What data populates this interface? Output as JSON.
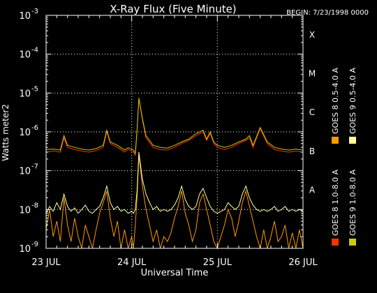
{
  "chart_data": {
    "type": "line",
    "title": "X-Ray Flux (Five Minute)",
    "begin_label": "BEGIN: 7/23/1998 0000",
    "xlabel": "Universal Time",
    "ylabel": "Watts meter2",
    "y_scale": "log",
    "ylim": [
      1e-09,
      0.001
    ],
    "xlim": [
      0,
      72
    ],
    "x_unit": "hours since 23 JUL 1998 0000 UT",
    "grid": true,
    "y_ticks": [
      {
        "value": 1e-09,
        "base": "10",
        "exp": "-9"
      },
      {
        "value": 1e-08,
        "base": "10",
        "exp": "-8"
      },
      {
        "value": 1e-07,
        "base": "10",
        "exp": "-7"
      },
      {
        "value": 1e-06,
        "base": "10",
        "exp": "-6"
      },
      {
        "value": 1e-05,
        "base": "10",
        "exp": "-5"
      },
      {
        "value": 0.0001,
        "base": "10",
        "exp": "-4"
      },
      {
        "value": 0.001,
        "base": "10",
        "exp": "-3"
      }
    ],
    "x_ticks": [
      {
        "value": 0,
        "label": "23 JUL"
      },
      {
        "value": 24,
        "label": "24 JUL"
      },
      {
        "value": 48,
        "label": "25 JUL"
      },
      {
        "value": 72,
        "label": "26 JUL"
      }
    ],
    "flare_classes": [
      {
        "label": "A",
        "value": 1e-08
      },
      {
        "label": "B",
        "value": 1e-07
      },
      {
        "label": "C",
        "value": 1e-06
      },
      {
        "label": "M",
        "value": 1e-05
      },
      {
        "label": "X",
        "value": 0.0001
      }
    ],
    "series": [
      {
        "name": "GOES 8 1.0-8.0 A",
        "color": "#ff3300",
        "x": [
          0,
          2,
          4,
          5,
          6,
          8,
          10,
          12,
          14,
          16,
          17,
          18,
          20,
          22,
          23,
          24,
          24.5,
          25,
          25.5,
          26,
          27,
          28,
          30,
          32,
          34,
          36,
          38,
          40,
          42,
          44,
          45,
          46,
          47,
          48,
          50,
          52,
          54,
          56,
          57,
          58,
          60,
          62,
          64,
          66,
          68,
          70,
          72
        ],
        "values": [
          3e-07,
          3.2e-07,
          3e-07,
          7e-07,
          4e-07,
          3.5e-07,
          3.2e-07,
          3e-07,
          3.3e-07,
          4e-07,
          1e-06,
          5e-07,
          4e-07,
          3e-07,
          3.5e-07,
          3.2e-07,
          3e-07,
          2.5e-07,
          1e-06,
          7e-06,
          2e-06,
          7e-07,
          4e-07,
          3.5e-07,
          3.4e-07,
          4e-07,
          5e-07,
          6e-07,
          8e-07,
          1e-06,
          6e-07,
          9e-07,
          5e-07,
          4e-07,
          3.5e-07,
          4e-07,
          5e-07,
          6e-07,
          7e-07,
          4e-07,
          1.2e-06,
          5e-07,
          3.5e-07,
          3.2e-07,
          3e-07,
          3.2e-07,
          3e-07
        ]
      },
      {
        "name": "GOES 8 0.5-4.0 A",
        "color": "#ff9900",
        "x": [
          0,
          1,
          2,
          3,
          4,
          5,
          6,
          7,
          8,
          9,
          10,
          11,
          12,
          13,
          14,
          15,
          16,
          17,
          18,
          19,
          20,
          21,
          22,
          23,
          24,
          24.5,
          25,
          25.5,
          26,
          27,
          28,
          29,
          30,
          31,
          32,
          33,
          34,
          35,
          36,
          37,
          38,
          39,
          40,
          41,
          42,
          43,
          44,
          45,
          46,
          47,
          48,
          49,
          50,
          51,
          52,
          53,
          54,
          55,
          56,
          57,
          58,
          59,
          60,
          61,
          62,
          63,
          64,
          65,
          66,
          67,
          68,
          69,
          70,
          71,
          72
        ],
        "values": [
          3e-09,
          1e-08,
          2e-09,
          5e-09,
          1.5e-09,
          2e-08,
          4e-09,
          1.5e-09,
          6e-09,
          2e-09,
          1e-09,
          4e-09,
          2e-09,
          1e-09,
          3e-09,
          8e-09,
          1.5e-08,
          3e-08,
          6e-09,
          2e-09,
          5e-09,
          1e-09,
          3e-09,
          1e-09,
          2e-09,
          1e-09,
          4e-09,
          2e-08,
          2.5e-07,
          4e-08,
          1e-08,
          4e-09,
          1.5e-09,
          3e-09,
          1e-09,
          2e-09,
          1.5e-09,
          2.5e-09,
          6e-09,
          1.2e-08,
          3e-08,
          8e-09,
          4e-09,
          1.5e-09,
          3e-09,
          1.5e-08,
          2.5e-08,
          1e-08,
          4e-09,
          1.5e-09,
          1e-09,
          2e-09,
          4e-09,
          1e-08,
          6e-09,
          2e-09,
          5e-09,
          1.5e-08,
          3e-08,
          1.2e-08,
          5e-09,
          2e-09,
          1e-09,
          3e-09,
          1e-09,
          2e-09,
          5e-09,
          1.5e-09,
          2e-09,
          4e-09,
          1e-09,
          2.5e-09,
          1e-09,
          3e-09,
          1e-09
        ]
      },
      {
        "name": "GOES 9 1.0-8.0 A",
        "color": "#cccc00",
        "x": [
          0,
          2,
          4,
          5,
          6,
          8,
          10,
          12,
          14,
          16,
          17,
          18,
          20,
          22,
          23,
          24,
          24.5,
          25,
          25.5,
          26,
          27,
          28,
          30,
          32,
          34,
          36,
          38,
          40,
          42,
          44,
          45,
          46,
          47,
          48,
          50,
          52,
          54,
          56,
          57,
          58,
          60,
          62,
          64,
          66,
          68,
          70,
          72
        ],
        "values": [
          3.5e-07,
          3.6e-07,
          3.4e-07,
          8e-07,
          4.5e-07,
          4e-07,
          3.6e-07,
          3.4e-07,
          3.7e-07,
          4.5e-07,
          1.1e-06,
          5.5e-07,
          4.5e-07,
          3.4e-07,
          3.9e-07,
          3.6e-07,
          3.4e-07,
          2.8e-07,
          1.1e-06,
          7.5e-06,
          2.2e-06,
          8e-07,
          4.5e-07,
          4e-07,
          3.8e-07,
          4.5e-07,
          5.5e-07,
          6.5e-07,
          9e-07,
          1.1e-06,
          6.5e-07,
          1e-06,
          5.5e-07,
          4.5e-07,
          4e-07,
          4.5e-07,
          5.5e-07,
          6.5e-07,
          8e-07,
          4.5e-07,
          1.3e-06,
          5.5e-07,
          4e-07,
          3.6e-07,
          3.4e-07,
          3.6e-07,
          3.4e-07
        ]
      },
      {
        "name": "GOES 9 0.5-4.0 A",
        "color": "#ffff99",
        "x": [
          0,
          1,
          2,
          3,
          4,
          5,
          6,
          7,
          8,
          9,
          10,
          11,
          12,
          13,
          14,
          15,
          16,
          17,
          18,
          19,
          20,
          21,
          22,
          23,
          24,
          24.5,
          25,
          25.5,
          26,
          27,
          28,
          29,
          30,
          31,
          32,
          33,
          34,
          35,
          36,
          37,
          38,
          39,
          40,
          41,
          42,
          43,
          44,
          45,
          46,
          47,
          48,
          49,
          50,
          51,
          52,
          53,
          54,
          55,
          56,
          57,
          58,
          59,
          60,
          61,
          62,
          63,
          64,
          65,
          66,
          67,
          68,
          69,
          70,
          71,
          72
        ],
        "values": [
          8e-09,
          1.2e-08,
          9e-09,
          1.5e-08,
          1e-08,
          2.5e-08,
          1.2e-08,
          9e-09,
          1.1e-08,
          8e-09,
          1e-08,
          1.3e-08,
          9e-09,
          8e-09,
          1e-08,
          1.2e-08,
          2e-08,
          4e-08,
          1.5e-08,
          1e-08,
          1.2e-08,
          9e-09,
          1e-08,
          8e-09,
          9e-09,
          8e-09,
          1e-08,
          3e-08,
          3e-07,
          6e-08,
          2.5e-08,
          1.5e-08,
          1e-08,
          1.2e-08,
          9e-09,
          1e-08,
          9e-09,
          1e-08,
          1.3e-08,
          2e-08,
          4e-08,
          1.8e-08,
          1.2e-08,
          1e-08,
          1.2e-08,
          2.5e-08,
          3.5e-08,
          2e-08,
          1.2e-08,
          9e-09,
          8e-09,
          9e-09,
          1e-08,
          1.5e-08,
          1.2e-08,
          1e-08,
          1.2e-08,
          2.5e-08,
          4e-08,
          2e-08,
          1.3e-08,
          1e-08,
          9e-09,
          1e-08,
          9e-09,
          1e-08,
          1.2e-08,
          9e-09,
          1e-08,
          1.2e-08,
          9e-09,
          1e-08,
          9e-09,
          1e-08,
          9e-09
        ]
      }
    ]
  }
}
